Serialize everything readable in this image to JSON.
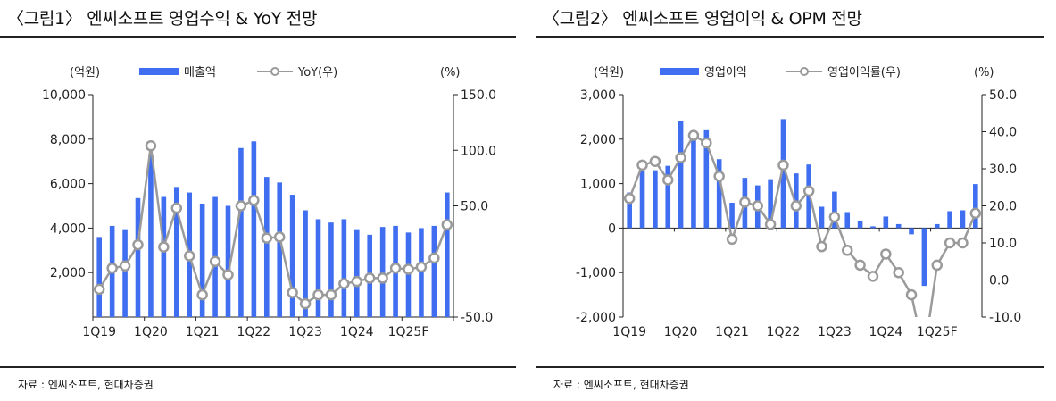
{
  "charts": [
    {
      "title": "〈그림1〉 엔씨소프트 영업수익 & YoY 전망",
      "source": "자료 : 엔씨소프트, 현대차증권",
      "left_unit": "(억원)",
      "right_unit": "(%)",
      "legend": {
        "bar": "매출액",
        "line": "YoY(우)"
      }
    },
    {
      "title": "〈그림2〉 엔씨소프트 영업이익 & OPM 전망",
      "source": "자료 : 엔씨소프트, 현대차증권",
      "left_unit": "(억원)",
      "right_unit": "(%)",
      "legend": {
        "bar": "영업이익",
        "line": "영업이익률(우)"
      }
    }
  ],
  "colors": {
    "bar": "#3f6ff0",
    "line": "#9a9a9a",
    "marker_fill": "#ffffff",
    "axis": "#222222"
  },
  "chart_data": [
    {
      "type": "bar+line",
      "categories": [
        "1Q19",
        "2Q19",
        "3Q19",
        "4Q19",
        "1Q20",
        "2Q20",
        "3Q20",
        "4Q20",
        "1Q21",
        "2Q21",
        "3Q21",
        "4Q21",
        "1Q22",
        "2Q22",
        "3Q22",
        "4Q22",
        "1Q23",
        "2Q23",
        "3Q23",
        "4Q23",
        "1Q24",
        "2Q24",
        "3Q24",
        "4Q24",
        "1Q25F",
        "2Q25F",
        "3Q25F",
        "4Q25F"
      ],
      "x_tick_labels": [
        "1Q19",
        "1Q20",
        "1Q21",
        "1Q22",
        "1Q23",
        "1Q24",
        "1Q25F"
      ],
      "series": [
        {
          "name": "매출액",
          "axis": "left",
          "type": "bar",
          "values": [
            3600,
            4100,
            3950,
            5350,
            7300,
            5400,
            5850,
            5600,
            5100,
            5400,
            5000,
            7600,
            7900,
            6300,
            6050,
            5500,
            4800,
            4400,
            4250,
            4400,
            3950,
            3700,
            4050,
            4100,
            3800,
            4000,
            4100,
            5600
          ]
        },
        {
          "name": "YoY(우)",
          "axis": "right",
          "type": "line",
          "values": [
            -25,
            -6,
            -4,
            15,
            104,
            13,
            48,
            5,
            -30,
            0,
            -12,
            50,
            55,
            21,
            22,
            -28,
            -38,
            -30,
            -30,
            -20,
            -18,
            -15,
            -15,
            -6,
            -7,
            -5,
            3,
            33
          ]
        }
      ],
      "left_axis": {
        "min": 0,
        "max": 10000,
        "ticks": [
          2000,
          4000,
          6000,
          8000,
          10000
        ],
        "tick_labels": [
          "2,000",
          "4,000",
          "6,000",
          "8,000",
          "10,000"
        ]
      },
      "right_axis": {
        "min": -50,
        "max": 150,
        "ticks": [
          -50,
          50,
          100,
          150
        ],
        "tick_labels": [
          "-50.0",
          "50.0",
          "100.0",
          "150.0"
        ]
      },
      "grid": false,
      "legend_position": "top"
    },
    {
      "type": "bar+line",
      "categories": [
        "1Q19",
        "2Q19",
        "3Q19",
        "4Q19",
        "1Q20",
        "2Q20",
        "3Q20",
        "4Q20",
        "1Q21",
        "2Q21",
        "3Q21",
        "4Q21",
        "1Q22",
        "2Q22",
        "3Q22",
        "4Q22",
        "1Q23",
        "2Q23",
        "3Q23",
        "4Q23",
        "1Q24",
        "2Q24",
        "3Q24",
        "4Q24",
        "1Q25F",
        "2Q25F",
        "3Q25F",
        "4Q25F"
      ],
      "x_tick_labels": [
        "1Q19",
        "1Q20",
        "1Q21",
        "1Q22",
        "1Q23",
        "1Q24",
        "1Q25F"
      ],
      "series": [
        {
          "name": "영업이익",
          "axis": "left",
          "type": "bar",
          "values": [
            800,
            1300,
            1300,
            1400,
            2400,
            2100,
            2200,
            1550,
            570,
            1130,
            960,
            1100,
            2450,
            1230,
            1430,
            480,
            820,
            360,
            170,
            40,
            260,
            90,
            -140,
            -1300,
            90,
            380,
            400,
            990
          ]
        },
        {
          "name": "영업이익률(우)",
          "axis": "right",
          "type": "line",
          "values": [
            22,
            31,
            32,
            27,
            33,
            39,
            37,
            28,
            11,
            21,
            20,
            15,
            31,
            20,
            24,
            9,
            17,
            8,
            4,
            1,
            7,
            2,
            -4,
            -20,
            4,
            10,
            10,
            18
          ]
        }
      ],
      "left_axis": {
        "min": -2000,
        "max": 3000,
        "ticks": [
          -2000,
          -1000,
          0,
          1000,
          2000,
          3000
        ],
        "tick_labels": [
          "-2,000",
          "-1,000",
          "0",
          "1,000",
          "2,000",
          "3,000"
        ]
      },
      "right_axis": {
        "min": -10,
        "max": 50,
        "ticks": [
          -10,
          0,
          10,
          20,
          30,
          40,
          50
        ],
        "tick_labels": [
          "-10.0",
          "0.0",
          "10.0",
          "20.0",
          "30.0",
          "40.0",
          "50.0"
        ]
      },
      "grid": false,
      "legend_position": "top"
    }
  ]
}
